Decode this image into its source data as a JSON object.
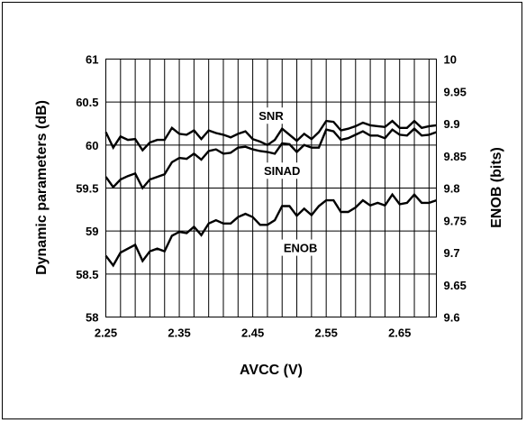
{
  "chart_data": {
    "type": "line",
    "xlabel": "AVCC (V)",
    "ylabel": "Dynamic parameters (dB)",
    "y2label": "ENOB (bits)",
    "xlim": [
      2.25,
      2.7
    ],
    "ylim": [
      58,
      61
    ],
    "y2lim": [
      9.6,
      10
    ],
    "x_ticks": [
      "2.25",
      "2.35",
      "2.45",
      "2.55",
      "2.65"
    ],
    "y_ticks": [
      "58",
      "58.5",
      "59",
      "59.5",
      "60",
      "60.5",
      "61"
    ],
    "y2_ticks": [
      "9.6",
      "9.65",
      "9.7",
      "9.75",
      "9.8",
      "9.85",
      "9.9",
      "9.95",
      "10"
    ],
    "grid": true,
    "x": [
      2.25,
      2.26,
      2.27,
      2.28,
      2.29,
      2.3,
      2.31,
      2.32,
      2.33,
      2.34,
      2.35,
      2.36,
      2.37,
      2.38,
      2.39,
      2.4,
      2.41,
      2.42,
      2.43,
      2.44,
      2.45,
      2.46,
      2.47,
      2.48,
      2.49,
      2.5,
      2.51,
      2.52,
      2.53,
      2.54,
      2.55,
      2.56,
      2.57,
      2.58,
      2.59,
      2.6,
      2.61,
      2.62,
      2.63,
      2.64,
      2.65,
      2.66,
      2.67,
      2.68,
      2.69,
      2.7
    ],
    "series": [
      {
        "name": "SNR",
        "axis": "left",
        "values": [
          60.15,
          59.97,
          60.1,
          60.06,
          60.07,
          59.94,
          60.03,
          60.06,
          60.06,
          60.2,
          60.13,
          60.12,
          60.17,
          60.07,
          60.17,
          60.14,
          60.12,
          60.09,
          60.13,
          60.16,
          60.07,
          60.04,
          60.0,
          60.06,
          60.19,
          60.12,
          60.05,
          60.13,
          60.07,
          60.15,
          60.28,
          60.27,
          60.17,
          60.19,
          60.22,
          60.26,
          60.23,
          60.22,
          60.21,
          60.28,
          60.2,
          60.2,
          60.28,
          60.2,
          60.22,
          60.23
        ]
      },
      {
        "name": "SINAD",
        "axis": "left",
        "values": [
          59.63,
          59.51,
          59.6,
          59.64,
          59.67,
          59.5,
          59.6,
          59.63,
          59.66,
          59.8,
          59.85,
          59.84,
          59.9,
          59.83,
          59.93,
          59.95,
          59.9,
          59.91,
          59.97,
          59.98,
          59.95,
          59.93,
          59.92,
          59.9,
          60.02,
          60.01,
          59.92,
          60.0,
          59.97,
          59.97,
          60.18,
          60.16,
          60.06,
          60.08,
          60.12,
          60.16,
          60.11,
          60.11,
          60.08,
          60.18,
          60.12,
          60.11,
          60.19,
          60.11,
          60.12,
          60.15
        ]
      },
      {
        "name": "ENOB",
        "axis": "right",
        "values": [
          9.695,
          9.68,
          9.7,
          9.706,
          9.712,
          9.687,
          9.702,
          9.706,
          9.702,
          9.726,
          9.732,
          9.73,
          9.74,
          9.727,
          9.745,
          9.75,
          9.745,
          9.745,
          9.755,
          9.76,
          9.755,
          9.743,
          9.743,
          9.75,
          9.772,
          9.772,
          9.757,
          9.768,
          9.758,
          9.772,
          9.781,
          9.781,
          9.763,
          9.763,
          9.77,
          9.781,
          9.773,
          9.777,
          9.773,
          9.79,
          9.775,
          9.777,
          9.79,
          9.777,
          9.777,
          9.781
        ]
      }
    ]
  }
}
